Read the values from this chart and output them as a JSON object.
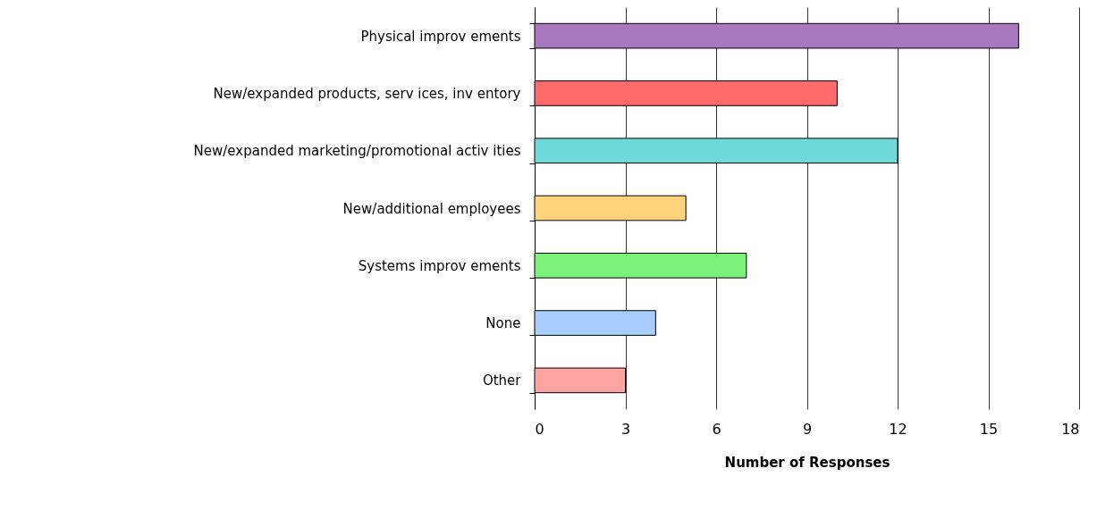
{
  "chart_data": {
    "type": "bar",
    "orientation": "horizontal",
    "xlabel": "Number of Responses",
    "categories": [
      "Physical improv ements",
      "New/expanded products, serv ices, inv entory",
      "New/expanded marketing/promotional activ ities",
      "New/additional employees",
      "Systems improv ements",
      "None",
      "Other"
    ],
    "values": [
      16,
      10,
      12,
      5,
      7,
      4,
      3
    ],
    "colors": [
      "#a878c0",
      "#ff6b6b",
      "#6fd8d8",
      "#ffd47a",
      "#7af27a",
      "#a9cdff",
      "#ffa3a3"
    ],
    "xlim": [
      0,
      18
    ],
    "xticks": [
      0,
      3,
      6,
      9,
      12,
      15,
      18
    ],
    "grid": "x",
    "legend": false
  }
}
